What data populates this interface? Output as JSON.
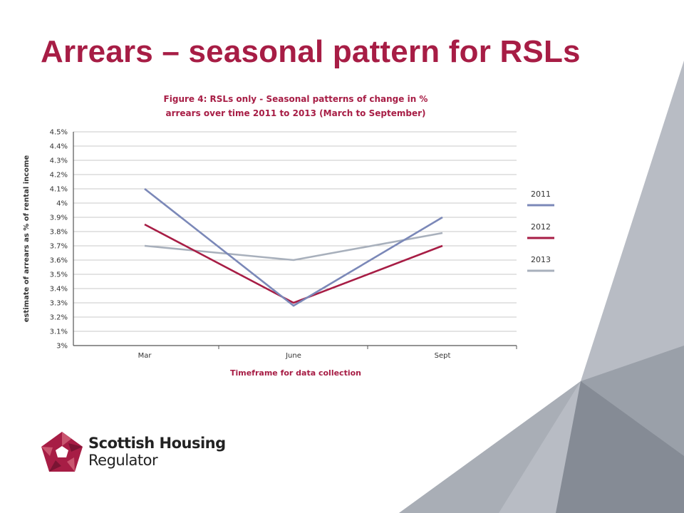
{
  "slide": {
    "title": "Arrears – seasonal pattern for RSLs"
  },
  "logo": {
    "name": "Scottish Housing",
    "sub": "Regulator",
    "color": "#a71d45"
  },
  "chart_data": {
    "type": "line",
    "title_line1": "Figure 4: RSLs only - Seasonal patterns of change in %",
    "title_line2": "arrears over time 2011 to 2013 (March to September)",
    "xlabel": "Timeframe for data collection",
    "ylabel": "estimate of arrears as % of rental income",
    "categories": [
      "Mar",
      "June",
      "Sept"
    ],
    "y_ticks": [
      "3%",
      "3.1%",
      "3.2%",
      "3.3%",
      "3.4%",
      "3.5%",
      "3.6%",
      "3.7%",
      "3.8%",
      "3.9%",
      "4%",
      "4.1%",
      "4.2%",
      "4.3%",
      "4.4%",
      "4.5%"
    ],
    "ylim": [
      3.0,
      4.5
    ],
    "grid": true,
    "legend_position": "right",
    "series": [
      {
        "name": "2011",
        "values": [
          4.1,
          3.28,
          3.9
        ],
        "color": "#7b88b8"
      },
      {
        "name": "2012",
        "values": [
          3.85,
          3.3,
          3.7
        ],
        "color": "#a71d45"
      },
      {
        "name": "2013",
        "values": [
          3.7,
          3.6,
          3.79
        ],
        "color": "#a8b0bc"
      }
    ],
    "title_color": "#a71d45"
  }
}
